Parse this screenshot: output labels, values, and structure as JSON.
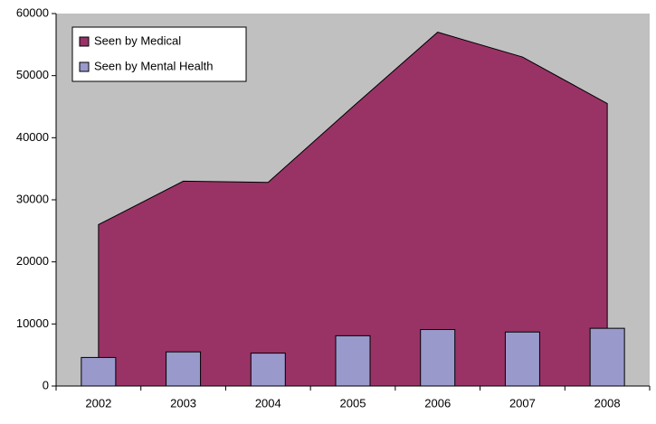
{
  "chart_data": {
    "type": "bar_area",
    "categories": [
      "2002",
      "2003",
      "2004",
      "2005",
      "2006",
      "2007",
      "2008"
    ],
    "series": [
      {
        "name": "Seen by Medical",
        "color": "#993366",
        "kind": "area",
        "values": [
          26000,
          33000,
          32800,
          45000,
          57000,
          53000,
          45500
        ]
      },
      {
        "name": "Seen by Mental Health",
        "color": "#9999cc",
        "kind": "bar",
        "values": [
          4600,
          5500,
          5300,
          8100,
          9100,
          8700,
          9300
        ]
      }
    ],
    "ylim": [
      0,
      60000
    ],
    "yticks": [
      0,
      10000,
      20000,
      30000,
      40000,
      50000,
      60000
    ],
    "legend": "top-left",
    "plot_background": "#c0c0c0"
  }
}
